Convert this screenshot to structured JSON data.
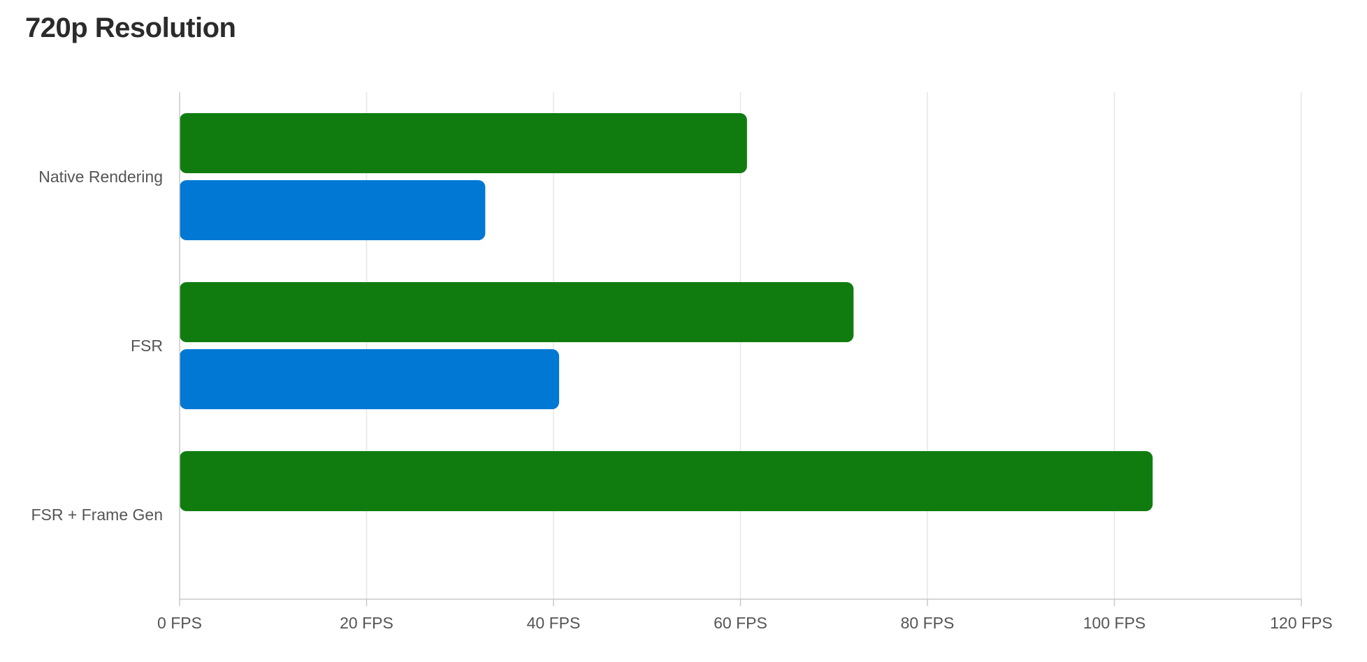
{
  "chart_data": {
    "type": "bar",
    "orientation": "horizontal",
    "title": "720p Resolution",
    "categories": [
      "Native Rendering",
      "FSR",
      "FSR + Frame Gen"
    ],
    "series": [
      {
        "color": "#107c10",
        "values": [
          60.7,
          72.1,
          104.1
        ]
      },
      {
        "color": "#0078d4",
        "values": [
          32.7,
          40.6,
          null
        ]
      }
    ],
    "xlim": [
      0,
      120
    ],
    "x_ticks": [
      0,
      20,
      40,
      60,
      80,
      100,
      120
    ],
    "x_tick_labels": [
      "0 FPS",
      "20 FPS",
      "40 FPS",
      "60 FPS",
      "80 FPS",
      "100 FPS",
      "120 FPS"
    ],
    "xlabel": "",
    "ylabel": "",
    "grid": true,
    "legend": "none"
  }
}
